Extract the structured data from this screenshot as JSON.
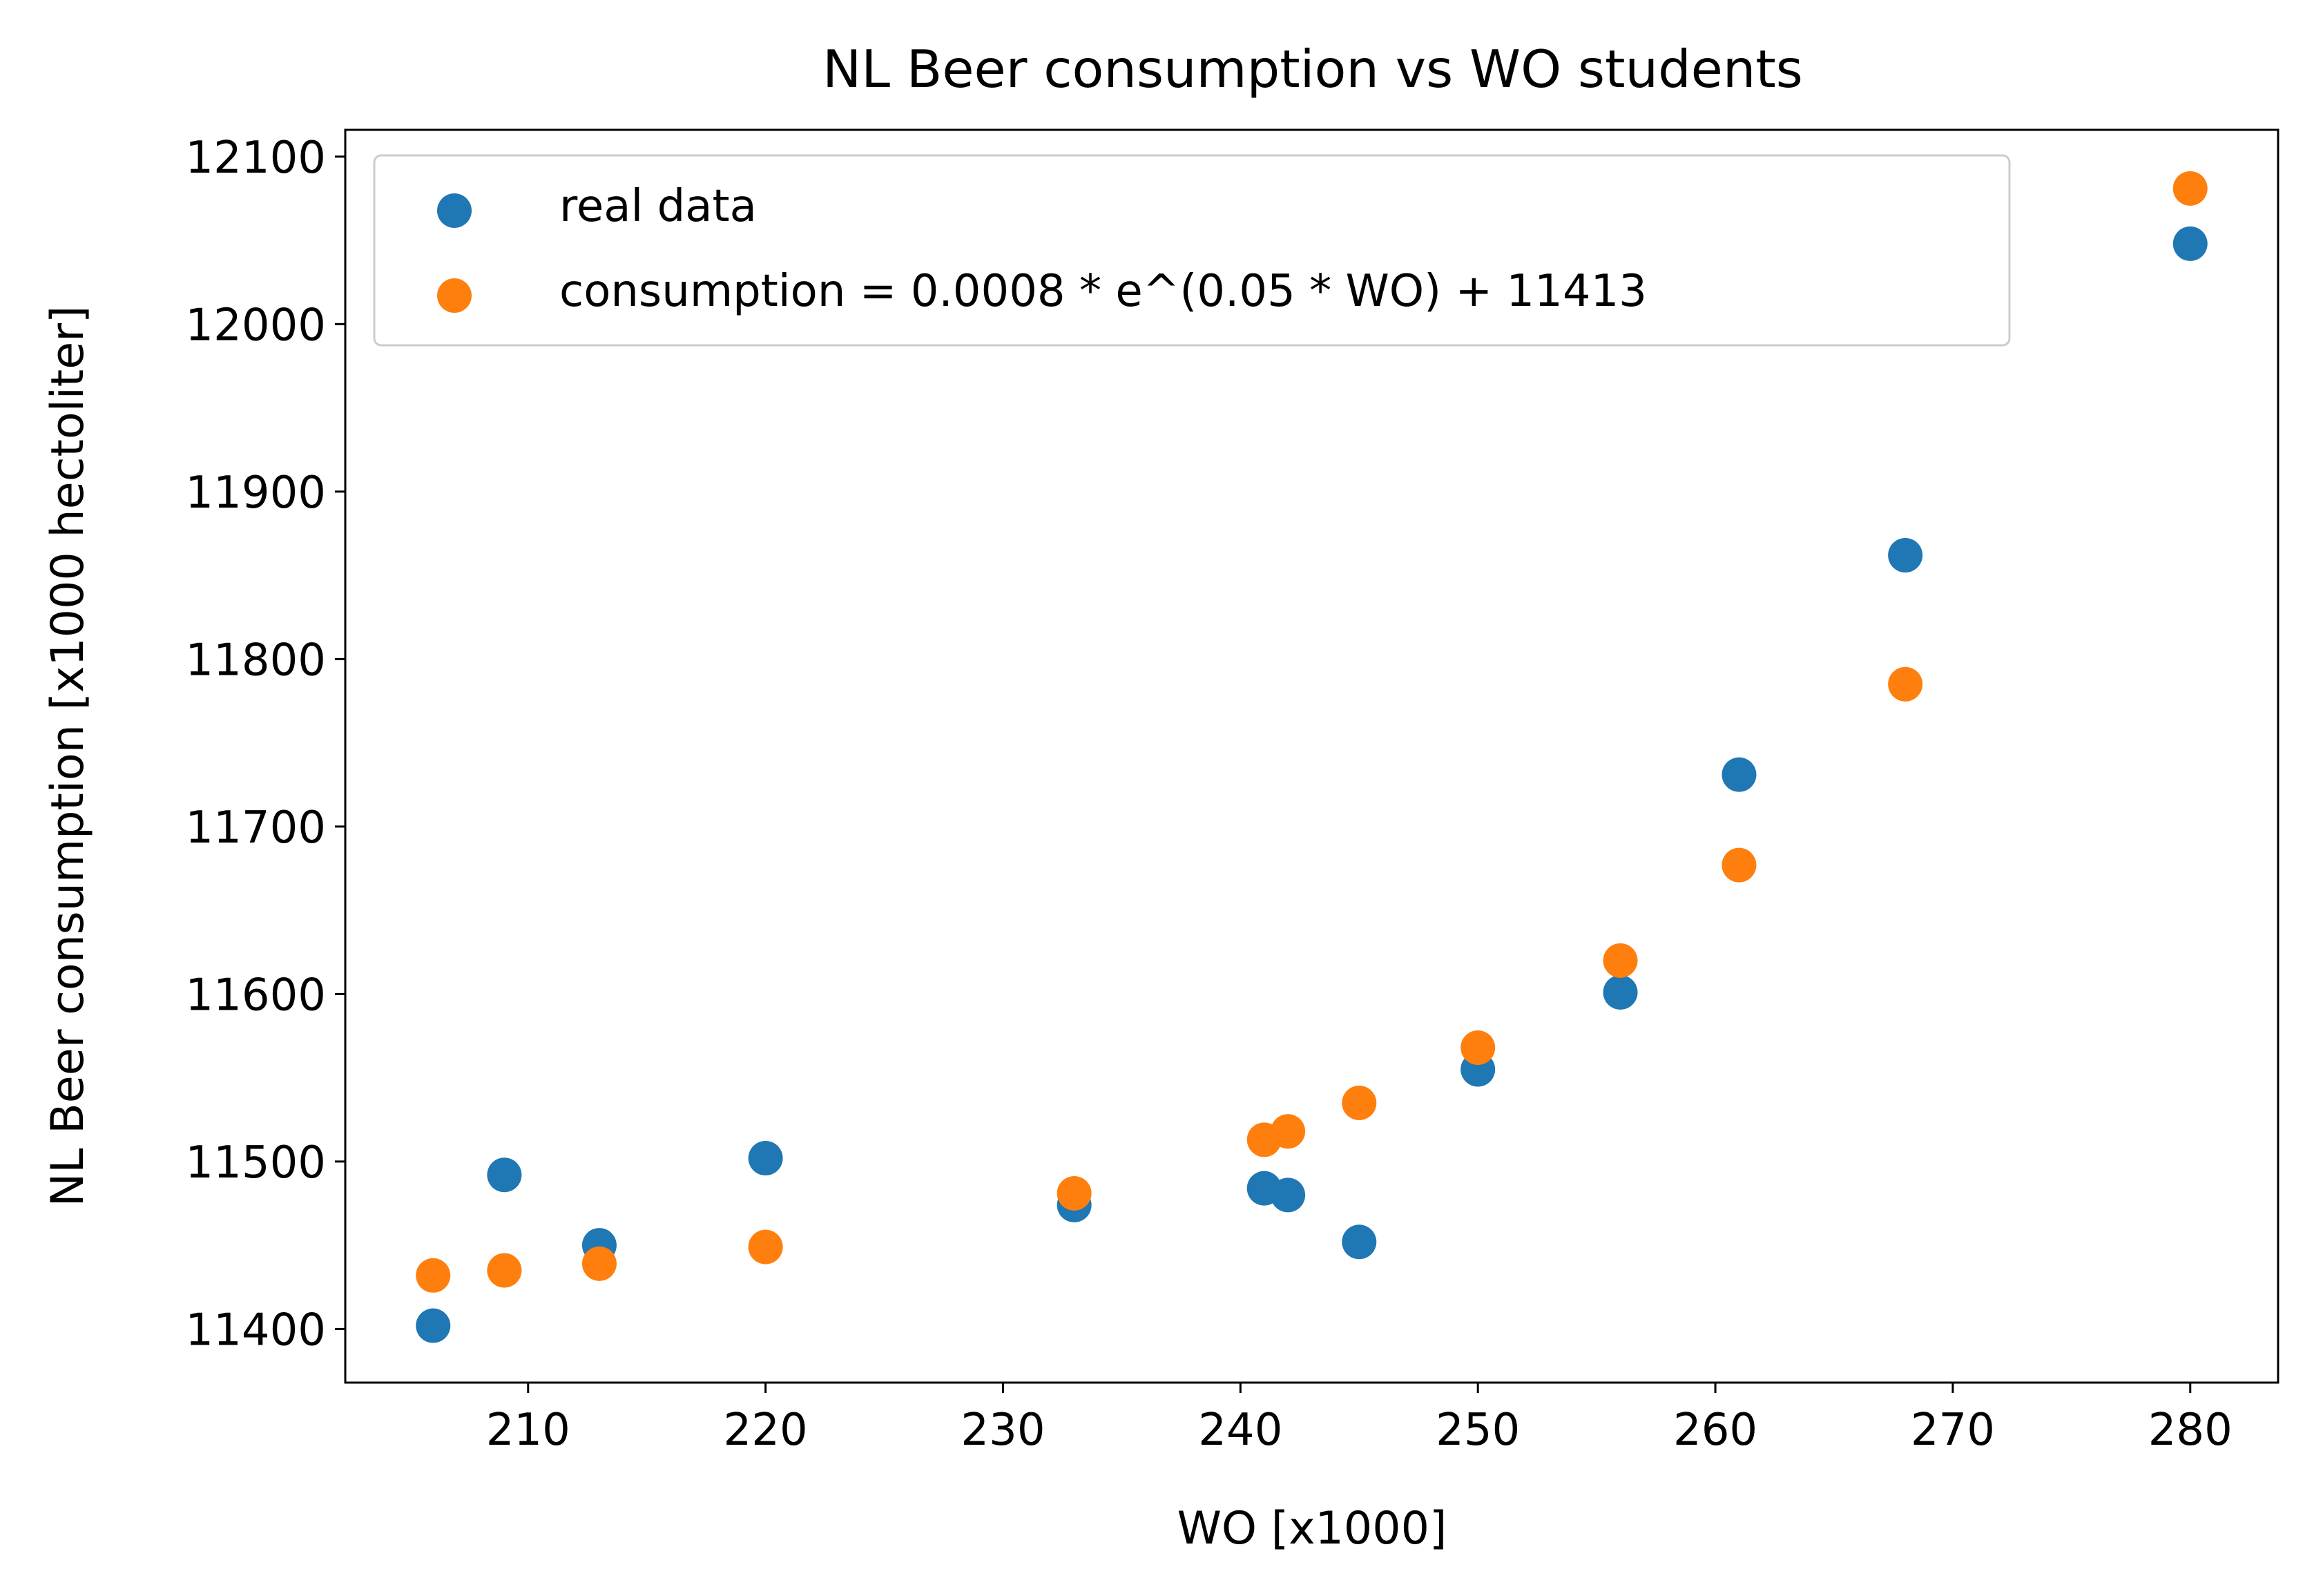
{
  "chart_data": {
    "type": "scatter",
    "title": "NL Beer consumption vs WO students",
    "xlabel": "WO [x1000]",
    "ylabel": "NL Beer consumption [x1000 hectoliter]",
    "xlim": [
      202.3,
      283.7
    ],
    "ylim": [
      11368,
      12116
    ],
    "xticks": [
      210,
      220,
      230,
      240,
      250,
      260,
      270,
      280
    ],
    "yticks": [
      11400,
      11500,
      11600,
      11700,
      11800,
      11900,
      12000,
      12100
    ],
    "xtick_labels": [
      "210",
      "220",
      "230",
      "240",
      "250",
      "260",
      "270",
      "280"
    ],
    "ytick_labels": [
      "11400",
      "11500",
      "11600",
      "11700",
      "11800",
      "11900",
      "12000",
      "12100"
    ],
    "grid": false,
    "legend_position": "top-left",
    "series": [
      {
        "name": "real data",
        "color": "#1f77b4",
        "points": [
          {
            "x": 206,
            "y": 11402
          },
          {
            "x": 209,
            "y": 11492
          },
          {
            "x": 213,
            "y": 11450
          },
          {
            "x": 220,
            "y": 11502
          },
          {
            "x": 233,
            "y": 11474
          },
          {
            "x": 241,
            "y": 11484
          },
          {
            "x": 242,
            "y": 11480
          },
          {
            "x": 245,
            "y": 11452
          },
          {
            "x": 250,
            "y": 11555
          },
          {
            "x": 256,
            "y": 11601
          },
          {
            "x": 261,
            "y": 11731
          },
          {
            "x": 268,
            "y": 11862
          },
          {
            "x": 280,
            "y": 12048
          }
        ]
      },
      {
        "name": "consumption = 0.0008 * e^(0.05 * WO) + 11413",
        "color": "#ff7f0e",
        "points": [
          {
            "x": 206,
            "y": 11432
          },
          {
            "x": 209,
            "y": 11435
          },
          {
            "x": 213,
            "y": 11439
          },
          {
            "x": 220,
            "y": 11449
          },
          {
            "x": 233,
            "y": 11481
          },
          {
            "x": 241,
            "y": 11513
          },
          {
            "x": 242,
            "y": 11518
          },
          {
            "x": 245,
            "y": 11535
          },
          {
            "x": 250,
            "y": 11568
          },
          {
            "x": 256,
            "y": 11620
          },
          {
            "x": 261,
            "y": 11677
          },
          {
            "x": 268,
            "y": 11785
          },
          {
            "x": 280,
            "y": 12081
          }
        ]
      }
    ]
  }
}
